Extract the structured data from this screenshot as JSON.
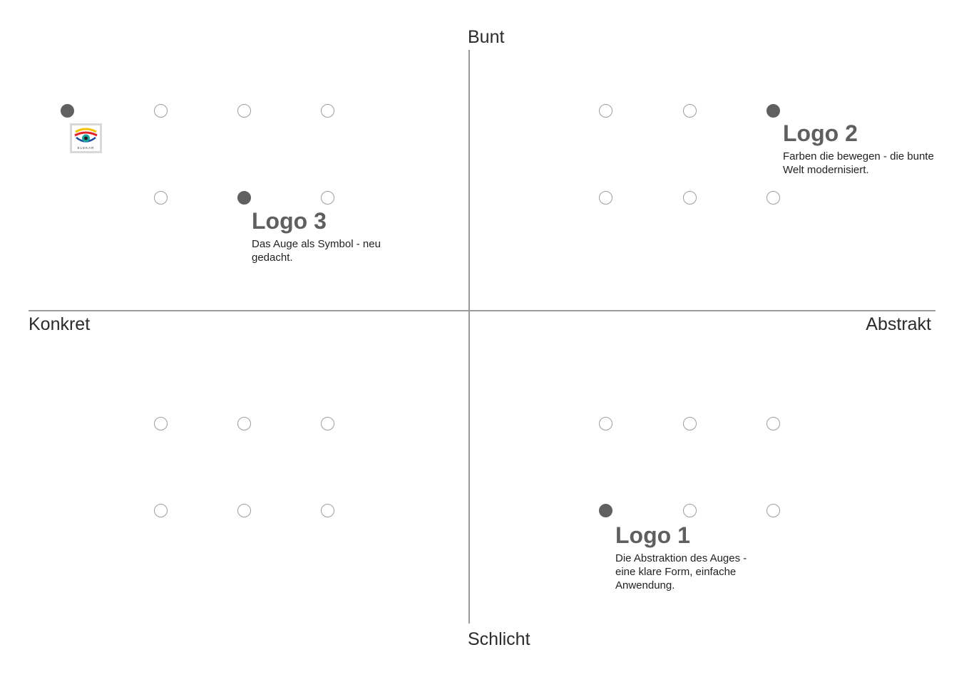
{
  "axes": {
    "top": "Bunt",
    "bottom": "Schlicht",
    "left": "Konkret",
    "right": "Abstrakt"
  },
  "logos": [
    {
      "title": "Logo 1",
      "description": "Die Abstraktion des Auges - eine klare Form, einfache Anwendung."
    },
    {
      "title": "Logo 2",
      "description": "Farben die bewegen - die bunte Welt modernisiert."
    },
    {
      "title": "Logo 3",
      "description": "Das Auge als Symbol - neu gedacht."
    }
  ],
  "current_logo": {
    "icon": "eye-logo-icon",
    "caption": "ELEKAR"
  },
  "colors": {
    "axis": "#9a9a9a",
    "dot_filled": "#606060",
    "dot_outline": "#9d9d9d",
    "logo_title": "#5f5f5f"
  }
}
